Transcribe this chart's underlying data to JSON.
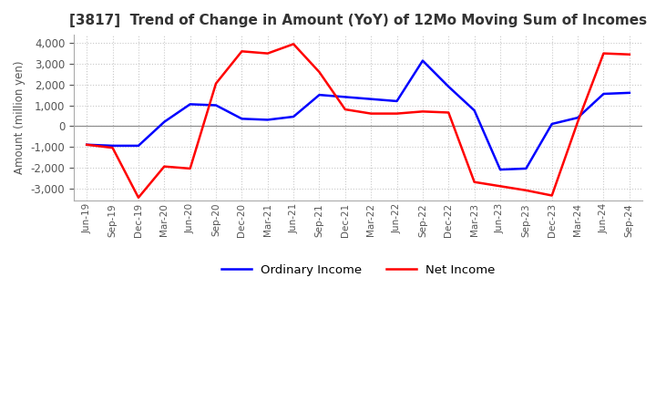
{
  "title": "[3817]  Trend of Change in Amount (YoY) of 12Mo Moving Sum of Incomes",
  "ylabel": "Amount (million yen)",
  "ylim": [
    -3600,
    4400
  ],
  "yticks": [
    -3000,
    -2000,
    -1000,
    0,
    1000,
    2000,
    3000,
    4000
  ],
  "background_color": "#ffffff",
  "grid_color": "#c8c8c8",
  "labels": [
    "Jun-19",
    "Sep-19",
    "Dec-19",
    "Mar-20",
    "Jun-20",
    "Sep-20",
    "Dec-20",
    "Mar-21",
    "Jun-21",
    "Sep-21",
    "Dec-21",
    "Mar-22",
    "Jun-22",
    "Sep-22",
    "Dec-22",
    "Mar-23",
    "Jun-23",
    "Sep-23",
    "Dec-23",
    "Mar-24",
    "Jun-24",
    "Sep-24"
  ],
  "ordinary_income": [
    -900,
    -950,
    -950,
    200,
    1050,
    1000,
    350,
    300,
    450,
    1500,
    1400,
    1300,
    1200,
    3150,
    1900,
    750,
    -2100,
    -2050,
    100,
    400,
    1550,
    1600
  ],
  "net_income": [
    -900,
    -1050,
    -3450,
    -1950,
    -2050,
    2050,
    3600,
    3500,
    3950,
    2600,
    800,
    600,
    600,
    700,
    650,
    -2700,
    -2900,
    -3100,
    -3350,
    200,
    3500,
    3450
  ],
  "ordinary_color": "#0000ff",
  "net_color": "#ff0000",
  "line_width": 1.8
}
